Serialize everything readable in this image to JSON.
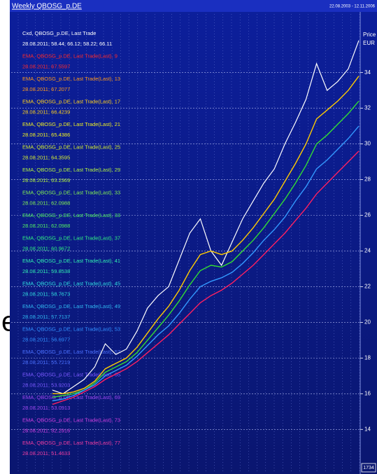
{
  "chart_data": {
    "type": "line",
    "title": "Weekly QBOSG_p.DE",
    "date_range": "22.08.2003 - 12.11.2006",
    "axis_label": [
      "Price",
      "EUR"
    ],
    "corner_label": "1734",
    "fragment": "e",
    "ylim": [
      11.5,
      37.4
    ],
    "yticks": [
      14,
      16,
      18,
      20,
      22,
      24,
      26,
      28,
      30,
      32,
      34
    ],
    "grid": true,
    "legend": [
      {
        "label": "Cxd, QBOSG_p.DE, Last Trade",
        "value_text": "28.08.2011; 58.44; 66.12; 58.22; 66.11",
        "color": "#ffffff"
      },
      {
        "label": "EMA, QBOSG_p.DE, Last Trade(Last), 9",
        "value_text": "28.08.2011; 67.5597",
        "color": "#ff2a2a"
      },
      {
        "label": "EMA, QBOSG_p.DE, Last Trade(Last), 13",
        "value_text": "28.08.2011; 67.2077",
        "color": "#ff9a1a"
      },
      {
        "label": "EMA, QBOSG_p.DE, Last Trade(Last), 17",
        "value_text": "28.08.2011; 66.4239",
        "color": "#ffd21a"
      },
      {
        "label": "EMA, QBOSG_p.DE, Last Trade(Last), 21",
        "value_text": "28.08.2011; 65.4386",
        "color": "#f0f020"
      },
      {
        "label": "EMA, QBOSG_p.DE, Last Trade(Last), 25",
        "value_text": "28.08.2011; 64.3595",
        "color": "#d8f030"
      },
      {
        "label": "EMA, QBOSG_p.DE, Last Trade(Last), 29",
        "value_text": "28.08.2011; 63.2369",
        "color": "#b0f040"
      },
      {
        "label": "EMA, QBOSG_p.DE, Last Trade(Last), 33",
        "value_text": "28.08.2011; 62.0988",
        "color": "#80f050"
      },
      {
        "label": "EMA, QBOSG_p.DE, Last Trade(Last), 33",
        "value_text": "28.08.2011; 62.0988",
        "color": "#50f060"
      },
      {
        "label": "EMA, QBOSG_p.DE, Last Trade(Last), 37",
        "value_text": "28.08.2011; 60.9672",
        "color": "#30f080"
      },
      {
        "label": "EMA, QBOSG_p.DE, Last Trade(Last), 41",
        "value_text": "28.08.2011; 59.8538",
        "color": "#30f0b0"
      },
      {
        "label": "EMA, QBOSG_p.DE, Last Trade(Last), 45",
        "value_text": "28.08.2011; 58.7673",
        "color": "#30e0e0"
      },
      {
        "label": "EMA, QBOSG_p.DE, Last Trade(Last), 49",
        "value_text": "28.08.2011; 57.7137",
        "color": "#30b8f0"
      },
      {
        "label": "EMA, QBOSG_p.DE, Last Trade(Last), 53",
        "value_text": "28.08.2011; 56.6977",
        "color": "#3090ff"
      },
      {
        "label": "EMA, QBOSG_p.DE, Last Trade(Last), 57",
        "value_text": "28.08.2011; 55.7219",
        "color": "#4a70ff"
      },
      {
        "label": "EMA, QBOSG_p.DE, Last Trade(Last), 65",
        "value_text": "28.08.2011; 53.9203",
        "color": "#7a58ff"
      },
      {
        "label": "EMA, QBOSG_p.DE, Last Trade(Last), 69",
        "value_text": "28.08.2011; 53.0913",
        "color": "#a048f0"
      },
      {
        "label": "EMA, QBOSG_p.DE, Last Trade(Last), 73",
        "value_text": "28.08.2011; 52.2916",
        "color": "#d040e0"
      },
      {
        "label": "EMA, QBOSG_p.DE, Last Trade(Last), 77",
        "value_text": "28.08.2011; 51.4633",
        "color": "#f03ca0"
      }
    ],
    "series": [
      {
        "color": "#ffffff",
        "values": [
          16.2,
          16.0,
          16.4,
          16.8,
          17.5,
          18.8,
          18.2,
          18.5,
          19.5,
          20.8,
          21.5,
          22.0,
          23.5,
          25.0,
          25.8,
          24.0,
          23.2,
          24.5,
          25.8,
          26.8,
          27.8,
          28.6,
          30.0,
          31.2,
          32.5,
          34.5,
          33.0,
          33.5,
          34.2,
          35.8
        ]
      },
      {
        "color": "#ffcc00",
        "values": [
          16.0,
          16.0,
          16.1,
          16.3,
          16.7,
          17.4,
          17.7,
          18.0,
          18.6,
          19.4,
          20.2,
          20.9,
          21.8,
          22.9,
          23.8,
          24.0,
          23.8,
          24.0,
          24.6,
          25.3,
          26.1,
          26.9,
          27.9,
          28.9,
          30.0,
          31.4,
          31.9,
          32.4,
          33.0,
          33.8
        ]
      },
      {
        "color": "#33dd33",
        "values": [
          15.8,
          15.9,
          16.0,
          16.2,
          16.6,
          17.2,
          17.5,
          17.8,
          18.3,
          19.0,
          19.7,
          20.4,
          21.2,
          22.1,
          22.9,
          23.2,
          23.1,
          23.4,
          24.0,
          24.6,
          25.3,
          26.1,
          26.9,
          27.8,
          28.8,
          30.0,
          30.5,
          31.1,
          31.7,
          32.4
        ]
      },
      {
        "color": "#3399ff",
        "values": [
          15.6,
          15.7,
          15.9,
          16.2,
          16.5,
          17.0,
          17.3,
          17.6,
          18.1,
          18.7,
          19.3,
          19.8,
          20.5,
          21.3,
          22.0,
          22.3,
          22.5,
          22.8,
          23.3,
          23.9,
          24.6,
          25.2,
          25.9,
          26.8,
          27.6,
          28.6,
          29.1,
          29.7,
          30.3,
          31.0
        ]
      },
      {
        "color": "#ff2060",
        "values": [
          15.4,
          15.6,
          15.8,
          16.1,
          16.4,
          16.8,
          17.1,
          17.4,
          17.8,
          18.3,
          18.8,
          19.3,
          19.9,
          20.5,
          21.1,
          21.5,
          21.8,
          22.2,
          22.7,
          23.2,
          23.8,
          24.4,
          25.0,
          25.7,
          26.4,
          27.2,
          27.8,
          28.4,
          29.0,
          29.6
        ]
      }
    ]
  }
}
